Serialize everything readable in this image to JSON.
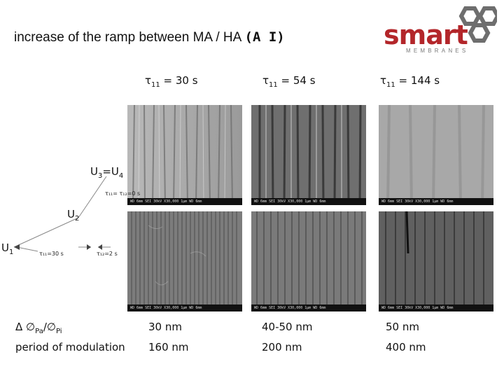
{
  "title": {
    "text": "increase of the ramp between MA / HA",
    "code": "(A I)"
  },
  "logo": {
    "main": "smart",
    "sub": "MEMBRANES"
  },
  "columns": [
    {
      "tau": "τ",
      "sub": "11",
      "value": "= 30 s"
    },
    {
      "tau": "τ",
      "sub": "11",
      "value": "= 54 s"
    },
    {
      "tau": "τ",
      "sub": "11",
      "value": "= 144 s"
    }
  ],
  "diagram": {
    "u34": {
      "main": "U",
      "sub1": "3",
      "mid": "=U",
      "sub2": "4"
    },
    "u2": {
      "main": "U",
      "sub": "2"
    },
    "u1": {
      "main": "U",
      "sub": "1"
    },
    "t_top": "τ₁₁= τ₁₂=0 s",
    "t_left": "τ₁₁=30 s",
    "t_right": "τ₁₂=2 s"
  },
  "sem_info": "WD 6mm  SEI  30kV  X30,000  1μm  WD 6mm",
  "rows": [
    {
      "label_prefix": "Δ ∅",
      "label_sub1": "Pa",
      "label_mid": "/∅",
      "label_sub2": "Pi",
      "values": [
        "30 nm",
        "40-50 nm",
        "50 nm"
      ]
    },
    {
      "label": "period of modulation",
      "values": [
        "160 nm",
        "200 nm",
        "400 nm"
      ]
    }
  ],
  "colors": {
    "logo_red": "#b3262a",
    "logo_gray": "#7a7a7a",
    "hex_gray": "#6e6e6e"
  }
}
